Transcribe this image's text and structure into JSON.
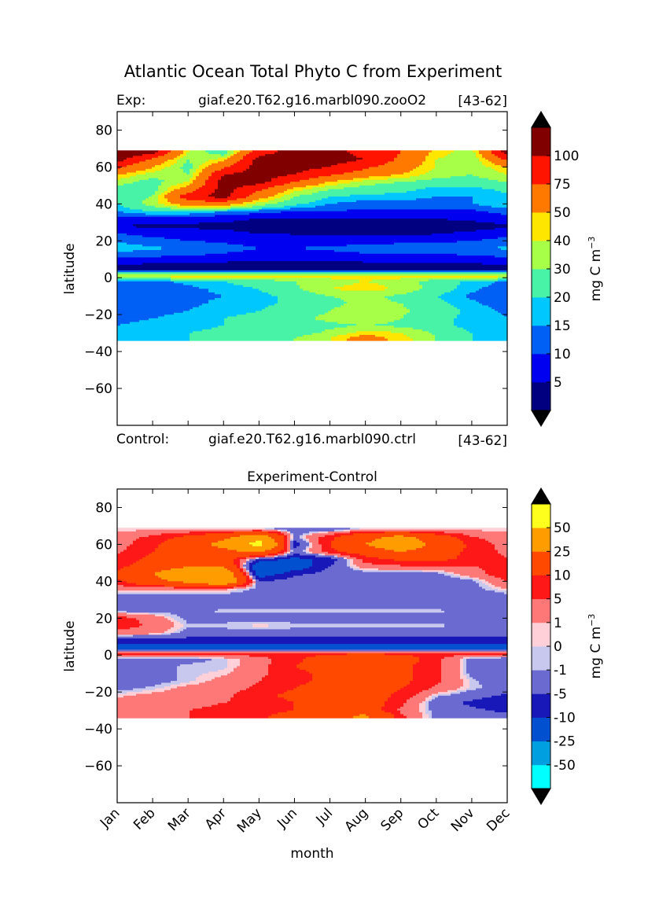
{
  "figure": {
    "title": "Atlantic Ocean Total Phyto C from Experiment",
    "xlabel": "month"
  },
  "chart_data": [
    {
      "type": "heatmap",
      "panel": "top",
      "header_left": "Exp:",
      "header_mid": "giaf.e20.T62.g16.marbl090.zooO2",
      "header_right": "[43-62]",
      "ylabel": "latitude",
      "ylim": [
        -80,
        90
      ],
      "yticks": [
        80,
        60,
        40,
        20,
        0,
        -20,
        -40,
        -60
      ],
      "xlim": [
        0,
        11
      ],
      "data_lat_range": [
        -34,
        69
      ],
      "colorbar": {
        "label": "mg C m",
        "label_sup": "−3",
        "levels": [
          "5",
          "10",
          "15",
          "20",
          "30",
          "40",
          "50",
          "75",
          "100"
        ],
        "colors": [
          "#000080",
          "#0000f0",
          "#005ff5",
          "#00c8ff",
          "#48f3a8",
          "#a8ff48",
          "#ffe600",
          "#ff7800",
          "#ff1400",
          "#800000"
        ],
        "under_color": "#000000",
        "over_color": "#000000"
      },
      "grid": {
        "months": [
          0,
          1,
          2,
          3,
          4,
          5,
          6,
          7,
          8,
          9,
          10,
          11
        ],
        "lats": [
          68,
          64,
          60,
          56,
          52,
          48,
          44,
          40,
          36,
          32,
          28,
          24,
          20,
          16,
          12,
          8,
          4,
          1,
          -2,
          -6,
          -10,
          -14,
          -18,
          -22,
          -26,
          -30,
          -33
        ],
        "values": [
          [
            110,
            110,
            40,
            20,
            90,
            110,
            110,
            90,
            75,
            45,
            35,
            110
          ],
          [
            110,
            70,
            30,
            45,
            110,
            110,
            110,
            100,
            70,
            40,
            30,
            80
          ],
          [
            80,
            50,
            25,
            70,
            110,
            110,
            100,
            80,
            60,
            40,
            30,
            50
          ],
          [
            50,
            35,
            30,
            100,
            110,
            100,
            80,
            60,
            50,
            35,
            30,
            40
          ],
          [
            35,
            25,
            40,
            110,
            110,
            75,
            50,
            35,
            30,
            25,
            25,
            30
          ],
          [
            25,
            25,
            60,
            110,
            80,
            45,
            30,
            25,
            22,
            18,
            18,
            22
          ],
          [
            22,
            30,
            90,
            110,
            60,
            30,
            20,
            18,
            18,
            15,
            15,
            18
          ],
          [
            20,
            35,
            60,
            60,
            35,
            22,
            15,
            12,
            12,
            12,
            15,
            20
          ],
          [
            15,
            20,
            20,
            15,
            12,
            10,
            10,
            9,
            9,
            9,
            9,
            12
          ],
          [
            8,
            8,
            7,
            6,
            5,
            4.5,
            4.5,
            4.5,
            4.5,
            5,
            6,
            8
          ],
          [
            5,
            4,
            4,
            4,
            3,
            3,
            3,
            3,
            3,
            3,
            3,
            4
          ],
          [
            10,
            8,
            7,
            6,
            5,
            4.5,
            4,
            4,
            4,
            4.5,
            6,
            8
          ],
          [
            14,
            12,
            10,
            9,
            8,
            8,
            7,
            8,
            9,
            9,
            10,
            12
          ],
          [
            18,
            16,
            14,
            12,
            10,
            10,
            11,
            12,
            12,
            12,
            14,
            16
          ],
          [
            12,
            11,
            10,
            9,
            8,
            8,
            8,
            9,
            9,
            9,
            10,
            11
          ],
          [
            6,
            5,
            5,
            4.5,
            4,
            4,
            4,
            4.5,
            4.5,
            5,
            5,
            6
          ],
          [
            3,
            3,
            3,
            3,
            3,
            3,
            3,
            3,
            3,
            3,
            3,
            3
          ],
          [
            45,
            45,
            45,
            45,
            45,
            45,
            45,
            45,
            45,
            45,
            45,
            45
          ],
          [
            12,
            14,
            16,
            20,
            25,
            30,
            35,
            40,
            35,
            25,
            18,
            14
          ],
          [
            10,
            12,
            14,
            16,
            20,
            28,
            40,
            45,
            38,
            25,
            16,
            12
          ],
          [
            10,
            12,
            14,
            15,
            18,
            22,
            30,
            32,
            28,
            20,
            14,
            11
          ],
          [
            11,
            12,
            14,
            16,
            18,
            22,
            28,
            32,
            30,
            22,
            16,
            12
          ],
          [
            12,
            13,
            15,
            18,
            20,
            25,
            30,
            35,
            32,
            25,
            18,
            14
          ],
          [
            14,
            15,
            17,
            20,
            22,
            28,
            32,
            35,
            30,
            22,
            18,
            15
          ],
          [
            15,
            16,
            18,
            20,
            22,
            25,
            28,
            30,
            28,
            22,
            18,
            16
          ],
          [
            16,
            18,
            20,
            22,
            24,
            26,
            32,
            45,
            40,
            28,
            20,
            18
          ],
          [
            16,
            18,
            20,
            22,
            26,
            30,
            40,
            60,
            45,
            30,
            20,
            18
          ]
        ]
      }
    },
    {
      "type": "heatmap",
      "panel": "bottom",
      "header_left": "Control:",
      "header_mid": "giaf.e20.T62.g16.marbl090.ctrl",
      "header_right": "[43-62]",
      "title": "Experiment-Control",
      "ylabel": "latitude",
      "ylim": [
        -80,
        90
      ],
      "yticks": [
        80,
        60,
        40,
        20,
        0,
        -20,
        -40,
        -60
      ],
      "xlim": [
        0,
        11
      ],
      "xticks": [
        "Jan",
        "Feb",
        "Mar",
        "Apr",
        "May",
        "Jun",
        "Jul",
        "Aug",
        "Sep",
        "Oct",
        "Nov",
        "Dec"
      ],
      "data_lat_range": [
        -34,
        69
      ],
      "colorbar": {
        "label": "mg C m",
        "label_sup": "−3",
        "levels": [
          "-50",
          "-25",
          "-10",
          "-5",
          "-1",
          "0",
          "1",
          "5",
          "10",
          "25",
          "50"
        ],
        "colors": [
          "#00ffff",
          "#00a0e0",
          "#0050d0",
          "#1818b8",
          "#6a6ad0",
          "#c8c8ee",
          "#ffd0d8",
          "#ff7878",
          "#ff1818",
          "#ff4800",
          "#ff9c00",
          "#ffff1e"
        ],
        "under_color": "#000000",
        "over_color": "#000000"
      },
      "grid": {
        "months": [
          0,
          1,
          2,
          3,
          4,
          5,
          6,
          7,
          8,
          9,
          10,
          11
        ],
        "lats": [
          68,
          64,
          60,
          56,
          52,
          48,
          44,
          40,
          36,
          32,
          28,
          24,
          20,
          16,
          12,
          8,
          4,
          1,
          -2,
          -6,
          -10,
          -14,
          -18,
          -22,
          -26,
          -30,
          -33
        ],
        "values": [
          [
            0.5,
            0.5,
            0.5,
            0.5,
            0.5,
            -3,
            -3,
            0.5,
            0.5,
            0.5,
            0.5,
            0.5
          ],
          [
            3,
            6,
            12,
            20,
            40,
            -2,
            8,
            20,
            30,
            15,
            5,
            3
          ],
          [
            3,
            8,
            18,
            30,
            60,
            -8,
            10,
            25,
            40,
            20,
            8,
            3
          ],
          [
            4,
            10,
            20,
            20,
            28,
            -3,
            8,
            15,
            25,
            15,
            8,
            4
          ],
          [
            6,
            12,
            20,
            15,
            -5,
            -12,
            -8,
            7,
            12,
            12,
            8,
            5
          ],
          [
            8,
            15,
            25,
            25,
            -20,
            -15,
            -5,
            3,
            4,
            4,
            5,
            6
          ],
          [
            12,
            25,
            40,
            40,
            -15,
            -6,
            -3,
            -3,
            -3,
            -2,
            3,
            8
          ],
          [
            8,
            20,
            30,
            45,
            -5,
            -3,
            -3,
            -3,
            -3,
            -3,
            -2,
            5
          ],
          [
            2,
            2,
            2,
            2,
            -2,
            -2,
            -2,
            -2,
            -2,
            -2,
            -2,
            1
          ],
          [
            -2,
            -2,
            -2,
            -2,
            -3,
            -3,
            -3,
            -3,
            -3,
            -3,
            -3,
            -2
          ],
          [
            -3,
            -3,
            -3,
            -3,
            -3,
            -3,
            -3,
            -3,
            -3,
            -3,
            -3,
            -3
          ],
          [
            -2,
            -2,
            -2,
            -0.5,
            -0.5,
            -0.5,
            -0.5,
            -0.5,
            -0.5,
            -0.5,
            -2,
            -2
          ],
          [
            7,
            3,
            -2,
            -2,
            -2,
            -2,
            -2,
            -2,
            -2,
            -2,
            -2,
            -2
          ],
          [
            8,
            4,
            -0.5,
            -0.5,
            0.5,
            -0.5,
            -0.5,
            -0.5,
            -0.5,
            -0.5,
            -2,
            -3
          ],
          [
            3,
            2,
            -2,
            -2,
            -2,
            -2,
            -2,
            -2,
            -2,
            -2,
            -2,
            -2
          ],
          [
            -7,
            -7,
            -7,
            -7,
            -7,
            -7,
            -7,
            -7,
            -7,
            -7,
            -7,
            -7
          ],
          [
            -15,
            -15,
            -15,
            -15,
            -15,
            -15,
            -15,
            -15,
            -15,
            -15,
            -15,
            -15
          ],
          [
            8,
            8,
            8,
            8,
            8,
            8,
            8,
            8,
            8,
            8,
            8,
            8
          ],
          [
            -2,
            -2,
            -2,
            -0.5,
            3,
            8,
            15,
            25,
            15,
            6,
            -2,
            -3
          ],
          [
            -2,
            -2,
            -0.5,
            -0.5,
            3,
            10,
            15,
            15,
            12,
            6,
            -2,
            -3
          ],
          [
            -2,
            -2,
            -0.5,
            0.5,
            4,
            8,
            12,
            12,
            12,
            6,
            -2,
            -3
          ],
          [
            -2,
            -2,
            -0.5,
            2,
            5,
            8,
            12,
            14,
            12,
            6,
            -0.5,
            -3
          ],
          [
            -2,
            -0.5,
            2,
            3,
            6,
            10,
            14,
            15,
            10,
            4,
            -0.5,
            -2
          ],
          [
            0.5,
            2,
            3,
            4,
            8,
            12,
            15,
            15,
            8,
            -0.5,
            -3,
            -6
          ],
          [
            2,
            3,
            4,
            5,
            6,
            10,
            15,
            15,
            6,
            -3,
            -6,
            -8
          ],
          [
            4,
            4,
            5,
            6,
            7,
            10,
            15,
            15,
            4,
            -2,
            -4,
            -6
          ],
          [
            4,
            4,
            5,
            6,
            8,
            15,
            20,
            28,
            6,
            -2,
            -3,
            -4
          ]
        ]
      }
    }
  ]
}
